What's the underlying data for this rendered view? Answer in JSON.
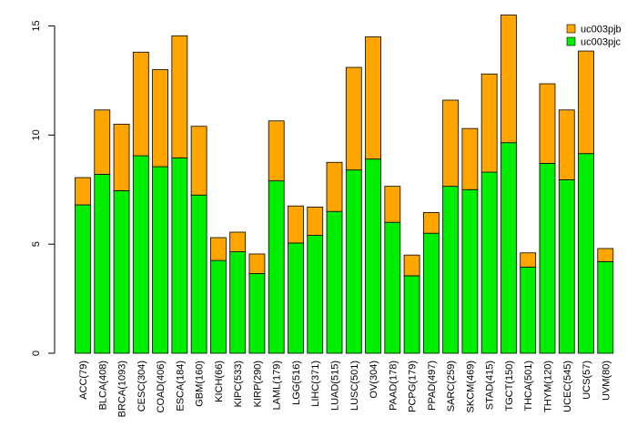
{
  "chart_data": {
    "type": "bar",
    "stacked": true,
    "title": "",
    "xlabel": "",
    "ylabel": "",
    "ylim": [
      0,
      15
    ],
    "yticks": [
      0,
      5,
      10,
      15
    ],
    "grid": false,
    "legend_position": "top-right",
    "categories": [
      "ACC(79)",
      "BLCA(408)",
      "BRCA(1093)",
      "CESC(304)",
      "COAD(406)",
      "ESCA(184)",
      "GBM(160)",
      "KICH(66)",
      "KIPC(533)",
      "KIRP(290)",
      "LAML(179)",
      "LGG(516)",
      "LIHC(371)",
      "LUAD(515)",
      "LUSC(501)",
      "OV(304)",
      "PAAD(178)",
      "PCPG(179)",
      "PPAD(497)",
      "SARC(259)",
      "SKCM(469)",
      "STAD(415)",
      "TGCT(150)",
      "THCA(501)",
      "THYM(120)",
      "UCEC(545)",
      "UCS(57)",
      "UVM(80)"
    ],
    "series": [
      {
        "name": "uc003pjc",
        "color": "#00ee00",
        "values": [
          6.8,
          8.2,
          7.45,
          9.05,
          8.55,
          8.95,
          7.25,
          4.25,
          4.65,
          3.65,
          7.9,
          5.05,
          5.4,
          6.5,
          8.4,
          8.9,
          6.0,
          3.55,
          5.5,
          7.65,
          7.5,
          8.3,
          9.65,
          3.95,
          8.7,
          7.95,
          9.15,
          4.2
        ]
      },
      {
        "name": "uc003pjb",
        "color": "#ffa500",
        "values": [
          1.25,
          2.95,
          3.05,
          4.75,
          4.45,
          5.6,
          3.15,
          1.05,
          0.9,
          0.9,
          2.75,
          1.7,
          1.3,
          2.25,
          4.7,
          5.6,
          1.65,
          0.95,
          0.95,
          3.95,
          2.8,
          4.5,
          5.85,
          0.65,
          3.65,
          3.2,
          4.7,
          0.6
        ]
      }
    ],
    "legend": [
      "uc003pjb",
      "uc003pjc"
    ]
  }
}
